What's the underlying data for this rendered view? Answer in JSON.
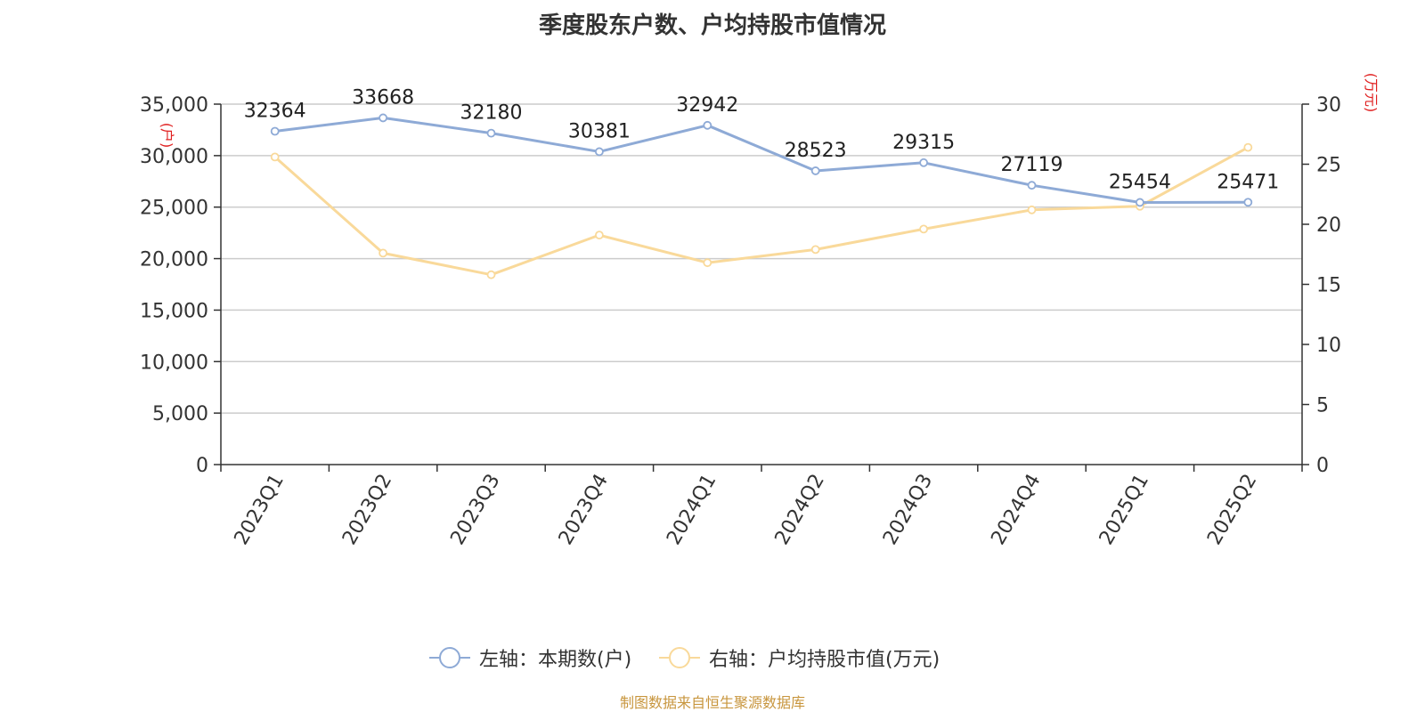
{
  "chart_data": {
    "type": "line",
    "title": "季度股东户数、户均持股市值情况",
    "categories": [
      "2023Q1",
      "2023Q2",
      "2023Q3",
      "2023Q4",
      "2024Q1",
      "2024Q2",
      "2024Q3",
      "2024Q4",
      "2025Q1",
      "2025Q2"
    ],
    "series": [
      {
        "name": "左轴：本期数(户)",
        "axis": "left",
        "color": "#8eaad6",
        "values": [
          32364,
          33668,
          32180,
          30381,
          32942,
          28523,
          29315,
          27119,
          25454,
          25471
        ],
        "labels": [
          "32364",
          "33668",
          "32180",
          "30381",
          "32942",
          "28523",
          "29315",
          "27119",
          "25454",
          "25471"
        ]
      },
      {
        "name": "右轴：户均持股市值(万元)",
        "axis": "right",
        "color": "#f9d99a",
        "values": [
          25.6,
          17.6,
          15.8,
          19.1,
          16.8,
          17.9,
          19.6,
          21.2,
          21.5,
          26.4
        ]
      }
    ],
    "left_axis": {
      "unit": "(户)",
      "ylim": [
        0,
        35000
      ],
      "ticks": [
        0,
        5000,
        10000,
        15000,
        20000,
        25000,
        30000,
        35000
      ],
      "tick_labels": [
        "0",
        "5,000",
        "10,000",
        "15,000",
        "20,000",
        "25,000",
        "30,000",
        "35,000"
      ]
    },
    "right_axis": {
      "unit": "(万元)",
      "ylim": [
        0,
        30
      ],
      "ticks": [
        0,
        5,
        10,
        15,
        20,
        25,
        30
      ],
      "tick_labels": [
        "0",
        "5",
        "10",
        "15",
        "20",
        "25",
        "30"
      ]
    },
    "grid": true,
    "legend_position": "bottom-center"
  },
  "source": "制图数据来自恒生聚源数据库"
}
